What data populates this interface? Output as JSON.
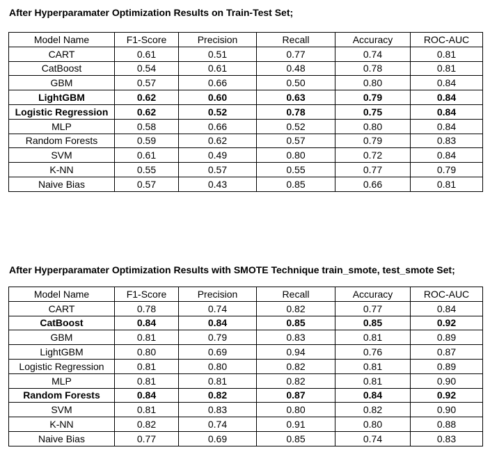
{
  "section1": {
    "title": "After Hyperparamater Optimization Results on Train-Test Set;",
    "headers": [
      "Model Name",
      "F1-Score",
      "Precision",
      "Recall",
      "Accuracy",
      "ROC-AUC"
    ],
    "rows": [
      {
        "model": "CART",
        "f1": "0.61",
        "precision": "0.51",
        "recall": "0.77",
        "accuracy": "0.74",
        "roc_auc": "0.81",
        "bold": false
      },
      {
        "model": "CatBoost",
        "f1": "0.54",
        "precision": "0.61",
        "recall": "0.48",
        "accuracy": "0.78",
        "roc_auc": "0.81",
        "bold": false
      },
      {
        "model": "GBM",
        "f1": "0.57",
        "precision": "0.66",
        "recall": "0.50",
        "accuracy": "0.80",
        "roc_auc": "0.84",
        "bold": false
      },
      {
        "model": "LightGBM",
        "f1": "0.62",
        "precision": "0.60",
        "recall": "0.63",
        "accuracy": "0.79",
        "roc_auc": "0.84",
        "bold": true
      },
      {
        "model": "Logistic Regression",
        "f1": "0.62",
        "precision": "0.52",
        "recall": "0.78",
        "accuracy": "0.75",
        "roc_auc": "0.84",
        "bold": true
      },
      {
        "model": "MLP",
        "f1": "0.58",
        "precision": "0.66",
        "recall": "0.52",
        "accuracy": "0.80",
        "roc_auc": "0.84",
        "bold": false
      },
      {
        "model": "Random Forests",
        "f1": "0.59",
        "precision": "0.62",
        "recall": "0.57",
        "accuracy": "0.79",
        "roc_auc": "0.83",
        "bold": false
      },
      {
        "model": "SVM",
        "f1": "0.61",
        "precision": "0.49",
        "recall": "0.80",
        "accuracy": "0.72",
        "roc_auc": "0.84",
        "bold": false
      },
      {
        "model": "K-NN",
        "f1": "0.55",
        "precision": "0.57",
        "recall": "0.55",
        "accuracy": "0.77",
        "roc_auc": "0.79",
        "bold": false
      },
      {
        "model": "Naive Bias",
        "f1": "0.57",
        "precision": "0.43",
        "recall": "0.85",
        "accuracy": "0.66",
        "roc_auc": "0.81",
        "bold": false
      }
    ]
  },
  "section2": {
    "title": "After Hyperparamater Optimization Results with SMOTE Technique train_smote, test_smote Set;",
    "headers": [
      "Model Name",
      "F1-Score",
      "Precision",
      "Recall",
      "Accuracy",
      "ROC-AUC"
    ],
    "rows": [
      {
        "model": "CART",
        "f1": "0.78",
        "precision": "0.74",
        "recall": "0.82",
        "accuracy": "0.77",
        "roc_auc": "0.84",
        "bold": false
      },
      {
        "model": "CatBoost",
        "f1": "0.84",
        "precision": "0.84",
        "recall": "0.85",
        "accuracy": "0.85",
        "roc_auc": "0.92",
        "bold": true
      },
      {
        "model": "GBM",
        "f1": "0.81",
        "precision": "0.79",
        "recall": "0.83",
        "accuracy": "0.81",
        "roc_auc": "0.89",
        "bold": false
      },
      {
        "model": "LightGBM",
        "f1": "0.80",
        "precision": "0.69",
        "recall": "0.94",
        "accuracy": "0.76",
        "roc_auc": "0.87",
        "bold": false
      },
      {
        "model": "Logistic Regression",
        "f1": "0.81",
        "precision": "0.80",
        "recall": "0.82",
        "accuracy": "0.81",
        "roc_auc": "0.89",
        "bold": false
      },
      {
        "model": "MLP",
        "f1": "0.81",
        "precision": "0.81",
        "recall": "0.82",
        "accuracy": "0.81",
        "roc_auc": "0.90",
        "bold": false
      },
      {
        "model": "Random Forests",
        "f1": "0.84",
        "precision": "0.82",
        "recall": "0.87",
        "accuracy": "0.84",
        "roc_auc": "0.92",
        "bold": true
      },
      {
        "model": "SVM",
        "f1": "0.81",
        "precision": "0.83",
        "recall": "0.80",
        "accuracy": "0.82",
        "roc_auc": "0.90",
        "bold": false
      },
      {
        "model": "K-NN",
        "f1": "0.82",
        "precision": "0.74",
        "recall": "0.91",
        "accuracy": "0.80",
        "roc_auc": "0.88",
        "bold": false
      },
      {
        "model": "Naive Bias",
        "f1": "0.77",
        "precision": "0.69",
        "recall": "0.85",
        "accuracy": "0.74",
        "roc_auc": "0.83",
        "bold": false
      }
    ]
  }
}
